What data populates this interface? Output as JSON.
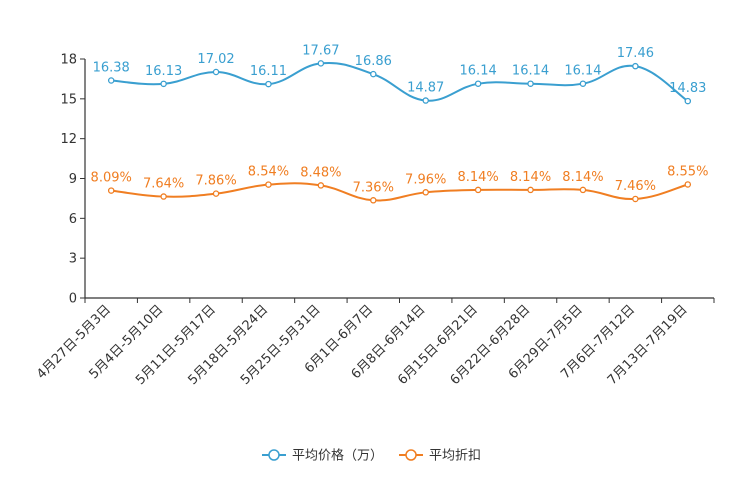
{
  "chart_data": {
    "type": "line",
    "title": "",
    "xlabel": "",
    "ylabel": "",
    "ylim": [
      0,
      18
    ],
    "yticks": [
      0,
      3,
      6,
      9,
      12,
      15,
      18
    ],
    "grid": false,
    "legend_position": "bottom-center",
    "categories": [
      "4月27日-5月3日",
      "5月4日-5月10日",
      "5月11日-5月17日",
      "5月18日-5月24日",
      "5月25日-5月31日",
      "6月1日-6月7日",
      "6月8日-6月14日",
      "6月15日-6月21日",
      "6月22日-6月28日",
      "6月29日-7月5日",
      "7月6日-7月12日",
      "7月13日-7月19日"
    ],
    "series": [
      {
        "name": "平均价格（万）",
        "color": "#3a9fd0",
        "values": [
          16.38,
          16.13,
          17.02,
          16.11,
          17.67,
          16.86,
          14.87,
          16.14,
          16.14,
          16.14,
          17.46,
          14.83
        ],
        "labels": [
          "16.38",
          "16.13",
          "17.02",
          "16.11",
          "17.67",
          "16.86",
          "14.87",
          "16.14",
          "16.14",
          "16.14",
          "17.46",
          "14.83"
        ]
      },
      {
        "name": "平均折扣",
        "color": "#f07e22",
        "values": [
          8.09,
          7.64,
          7.86,
          8.54,
          8.48,
          7.36,
          7.96,
          8.14,
          8.14,
          8.14,
          7.46,
          8.55
        ],
        "labels": [
          "8.09%",
          "7.64%",
          "7.86%",
          "8.54%",
          "8.48%",
          "7.36%",
          "7.96%",
          "8.14%",
          "8.14%",
          "8.14%",
          "7.46%",
          "8.55%"
        ]
      }
    ]
  }
}
